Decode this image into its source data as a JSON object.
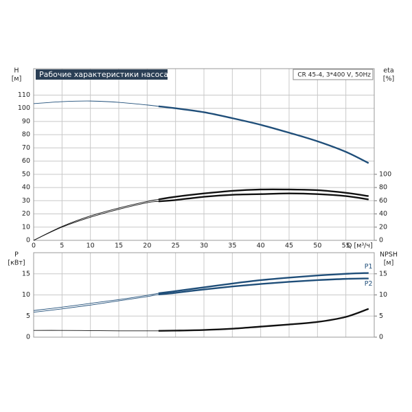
{
  "chart_data": [
    {
      "type": "line",
      "title": "Рабочие характеристики насоса",
      "subtitle": "CR 45-4, 3*400 V, 50Hz",
      "ylabel": [
        "H",
        "[м]"
      ],
      "y2label": [
        "eta",
        "[%]"
      ],
      "xlabel": "Q [м³/ч]",
      "x": [
        0,
        5,
        10,
        15,
        20,
        22,
        25,
        30,
        35,
        40,
        45,
        50,
        55,
        59
      ],
      "xlim": [
        0,
        60
      ],
      "xticks": [
        0,
        5,
        10,
        15,
        20,
        25,
        30,
        35,
        40,
        45,
        50,
        55
      ],
      "ylim": [
        0,
        130
      ],
      "yticks": [
        0,
        10,
        20,
        30,
        40,
        50,
        60,
        70,
        80,
        90,
        100,
        110
      ],
      "y2lim": [
        0,
        260
      ],
      "y2ticks": [
        0,
        20,
        40,
        60,
        80,
        100
      ],
      "grid": true,
      "thick_from_x": 22,
      "series": [
        {
          "color": "#1f4e79",
          "values": [
            103.5,
            105,
            105.5,
            104.5,
            102.5,
            101.5,
            100,
            97,
            92.5,
            87.5,
            81.5,
            75,
            67,
            58.5
          ]
        },
        {
          "color": "#111111",
          "axis": "y2",
          "values": [
            0,
            21,
            37,
            49,
            59,
            62,
            66,
            71,
            75,
            77,
            77,
            76,
            72,
            67
          ]
        },
        {
          "color": "#111111",
          "axis": "y2",
          "values": [
            0,
            20,
            35,
            47,
            57,
            59,
            61,
            66,
            69,
            70,
            71,
            70,
            67,
            62
          ]
        }
      ]
    },
    {
      "type": "line",
      "ylabel": [
        "P",
        "[кВт]"
      ],
      "y2label": [
        "NPSH",
        "[м]"
      ],
      "x": [
        0,
        5,
        10,
        15,
        20,
        22,
        25,
        30,
        35,
        40,
        45,
        50,
        55,
        59
      ],
      "xlim": [
        0,
        60
      ],
      "xticks": [
        0,
        5,
        10,
        15,
        20,
        25,
        30,
        35,
        40,
        45,
        50,
        55
      ],
      "ylim": [
        0,
        20
      ],
      "yticks": [
        0,
        5,
        10,
        15
      ],
      "y2lim": [
        0,
        20
      ],
      "y2ticks": [
        0,
        5,
        10,
        15
      ],
      "grid": true,
      "thick_from_x": 22,
      "series": [
        {
          "name": "P1",
          "color": "#1f4e79",
          "values": [
            6.3,
            7.1,
            8,
            8.9,
            9.9,
            10.4,
            10.9,
            11.8,
            12.7,
            13.5,
            14.1,
            14.6,
            15,
            15.2
          ]
        },
        {
          "name": "P2",
          "color": "#1f4e79",
          "values": [
            5.9,
            6.7,
            7.6,
            8.6,
            9.6,
            10.1,
            10.5,
            11.3,
            12,
            12.6,
            13.1,
            13.5,
            13.8,
            13.9
          ]
        },
        {
          "color": "#111111",
          "axis": "y2",
          "values": [
            1.6,
            1.6,
            1.55,
            1.5,
            1.5,
            1.5,
            1.55,
            1.7,
            2,
            2.5,
            3,
            3.6,
            4.8,
            6.7
          ]
        }
      ]
    }
  ]
}
